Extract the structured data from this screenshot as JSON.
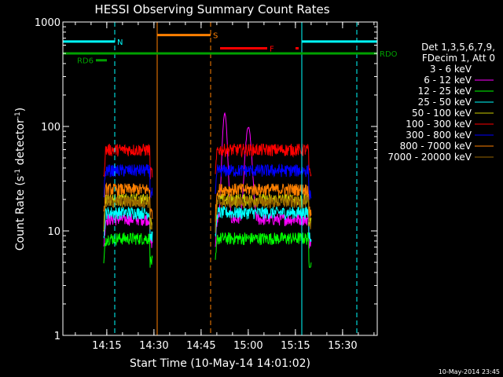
{
  "chart_data": {
    "type": "line",
    "title": "HESSI Observing Summary Count Rates",
    "xlabel": "Start Time (10-May-14 14:01:02)",
    "ylabel_main": "Count Rate (s",
    "ylabel_exp1": "-1",
    "ylabel_mid": " detector",
    "ylabel_exp2": "-1",
    "ylabel_end": ")",
    "y_scale": "log",
    "ylim": [
      1,
      1000
    ],
    "xlim_minutes": [
      0,
      100
    ],
    "x_ticks": [
      {
        "label": "14:15",
        "min": 13.97
      },
      {
        "label": "14:30",
        "min": 28.97
      },
      {
        "label": "14:45",
        "min": 43.97
      },
      {
        "label": "15:00",
        "min": 58.97
      },
      {
        "label": "15:15",
        "min": 73.97
      },
      {
        "label": "15:30",
        "min": 88.97
      }
    ],
    "y_ticks": [
      {
        "label": "1",
        "value": 1
      },
      {
        "label": "10",
        "value": 10
      },
      {
        "label": "100",
        "value": 100
      },
      {
        "label": "1000",
        "value": 1000
      }
    ],
    "legend_header": [
      "Det 1,3,5,6,7,9,",
      "FDecim 1, Att 0"
    ],
    "legend_position": "right",
    "series": [
      {
        "name": "3 - 6 keV",
        "color": "#000000",
        "level": 28
      },
      {
        "name": "6 - 12 keV",
        "color": "#ff00ff",
        "level": 13
      },
      {
        "name": "12 - 25 keV",
        "color": "#00ff00",
        "level": 8.5
      },
      {
        "name": "25 - 50 keV",
        "color": "#00ffff",
        "level": 15
      },
      {
        "name": "50 - 100 keV",
        "color": "#cccc00",
        "level": 20
      },
      {
        "name": "100 - 300 keV",
        "color": "#ff0000",
        "level": 60
      },
      {
        "name": "300 - 800 keV",
        "color": "#0000ff",
        "level": 38
      },
      {
        "name": "800 - 7000 keV",
        "color": "#ff8000",
        "level": 25
      },
      {
        "name": "7000 - 20000 keV",
        "color": "#996600",
        "level": 19
      }
    ],
    "data_intervals_minutes": [
      [
        13,
        28.5
      ],
      [
        48.5,
        79
      ]
    ],
    "flags": [
      {
        "label": "N",
        "color": "#00ffff",
        "segments": [
          [
            0,
            16.5
          ],
          [
            76,
            100
          ]
        ],
        "y_value": 650
      },
      {
        "label": "S",
        "color": "#ff8000",
        "segments": [
          [
            30,
            47
          ]
        ],
        "y_value": 750
      },
      {
        "label": "F",
        "color": "#ff0000",
        "segments": [
          [
            50,
            65
          ],
          [
            74,
            75
          ]
        ],
        "y_value": 560
      },
      {
        "label": "RDO",
        "color": "#00a000",
        "segments": [
          [
            0,
            100
          ]
        ],
        "y_value": 500
      },
      {
        "label": "RD6",
        "color": "#00a000",
        "segments": [
          [
            10.5,
            14
          ]
        ],
        "y_value": 430
      }
    ],
    "vertical_markers": [
      {
        "min": 0,
        "color": "#00ffff",
        "style": "solid"
      },
      {
        "min": 16.5,
        "color": "#00ffff",
        "style": "dashed"
      },
      {
        "min": 30,
        "color": "#ff8000",
        "style": "solid"
      },
      {
        "min": 47,
        "color": "#ff8000",
        "style": "dashed"
      },
      {
        "min": 76,
        "color": "#00ffff",
        "style": "solid"
      },
      {
        "min": 93.5,
        "color": "#00ffff",
        "style": "dashed"
      }
    ]
  },
  "footer": {
    "timestamp": "10-May-2014 23:45"
  }
}
